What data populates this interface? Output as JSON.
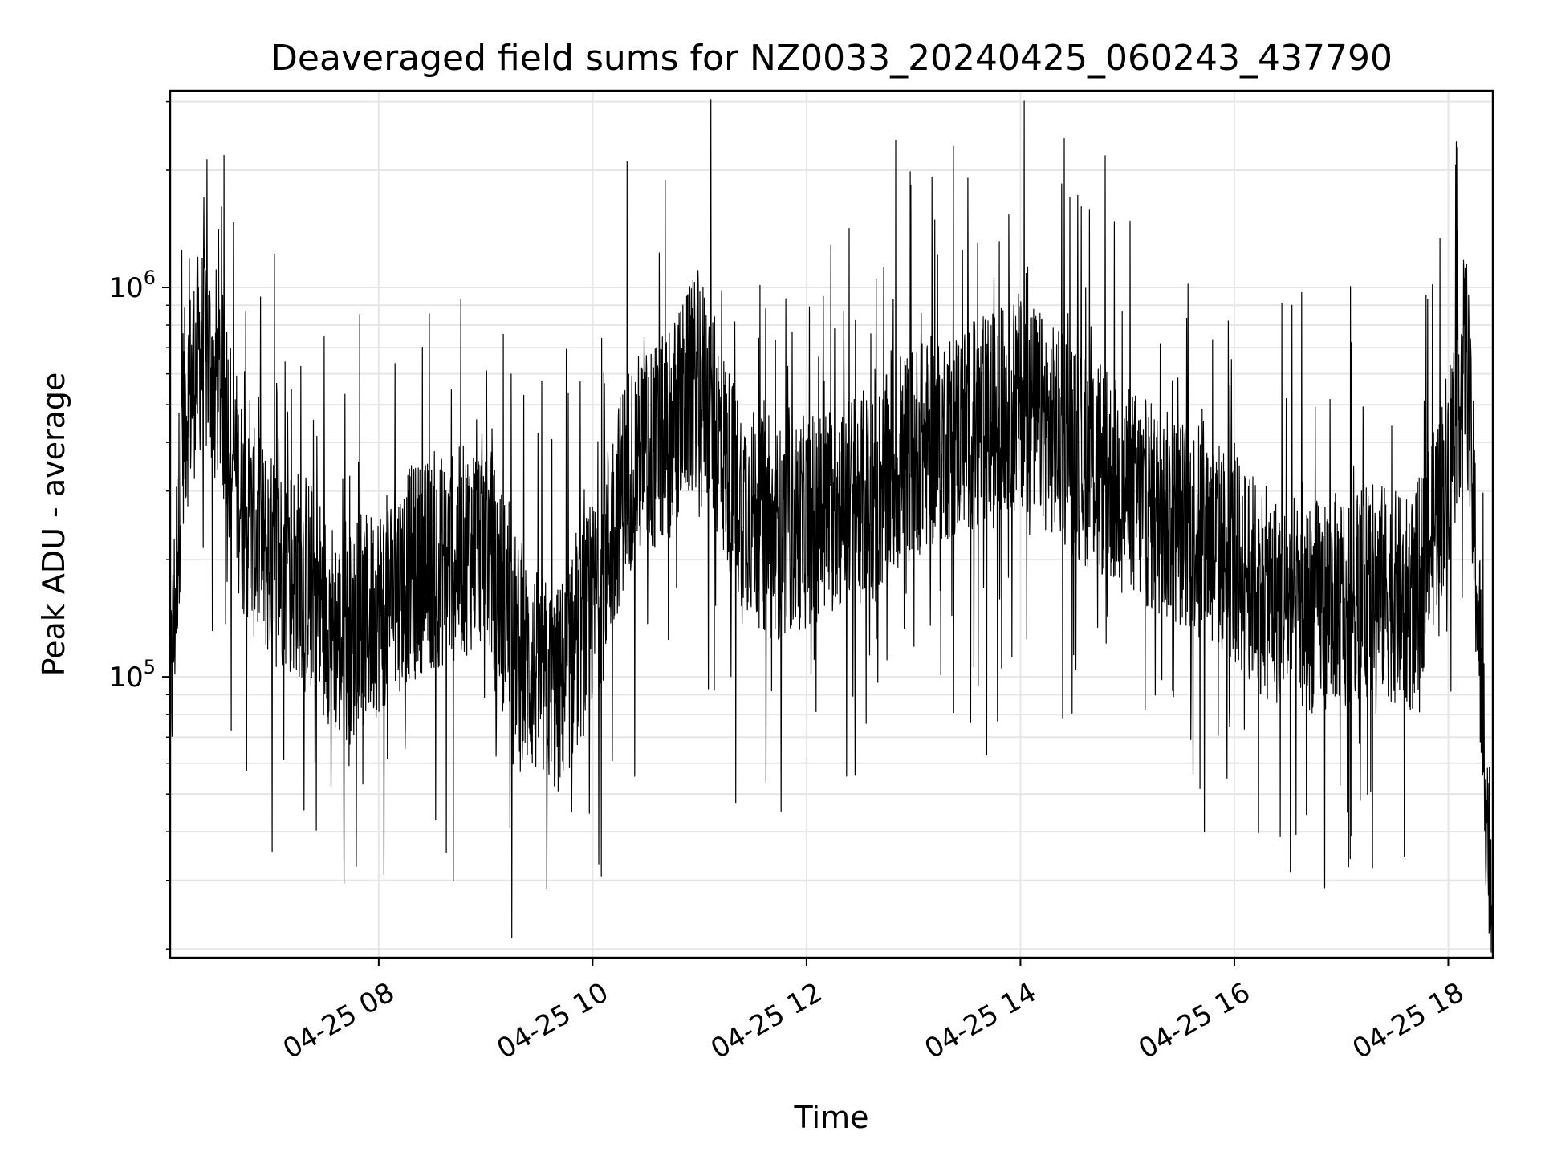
{
  "chart_data": {
    "type": "line",
    "title": "Deaveraged field sums for NZ0033_20240425_060243_437790",
    "xlabel": "Time",
    "ylabel": "Peak ADU - average",
    "xscale": "time",
    "yscale": "log",
    "xlim": [
      "2024-04-25T06:03",
      "2024-04-25T18:25"
    ],
    "ylim": [
      19000,
      3200000
    ],
    "grid": true,
    "line_color": "#000000",
    "grid_color": "#e6e6e6",
    "x_ticks": [
      {
        "label": "04-25 08",
        "t": "2024-04-25T08:00"
      },
      {
        "label": "04-25 10",
        "t": "2024-04-25T10:00"
      },
      {
        "label": "04-25 12",
        "t": "2024-04-25T12:00"
      },
      {
        "label": "04-25 14",
        "t": "2024-04-25T14:00"
      },
      {
        "label": "04-25 16",
        "t": "2024-04-25T16:00"
      },
      {
        "label": "04-25 18",
        "t": "2024-04-25T18:00"
      }
    ],
    "y_ticks": [
      {
        "base": "10",
        "exp": "5",
        "value": 100000
      },
      {
        "base": "10",
        "exp": "6",
        "value": 1000000
      }
    ],
    "series": [
      {
        "x": [
          "2024-04-25T06:03",
          "2024-04-25T06:10",
          "2024-04-25T06:20",
          "2024-04-25T06:30",
          "2024-04-25T06:45",
          "2024-04-25T07:00",
          "2024-04-25T07:20",
          "2024-04-25T07:40",
          "2024-04-25T08:00",
          "2024-04-25T08:20",
          "2024-04-25T08:40",
          "2024-04-25T09:00",
          "2024-04-25T09:20",
          "2024-04-25T09:40",
          "2024-04-25T10:00",
          "2024-04-25T10:20",
          "2024-04-25T10:40",
          "2024-04-25T11:00",
          "2024-04-25T11:20",
          "2024-04-25T11:40",
          "2024-04-25T12:00",
          "2024-04-25T12:20",
          "2024-04-25T12:40",
          "2024-04-25T13:00",
          "2024-04-25T13:20",
          "2024-04-25T13:40",
          "2024-04-25T14:00",
          "2024-04-25T14:20",
          "2024-04-25T14:40",
          "2024-04-25T15:00",
          "2024-04-25T15:20",
          "2024-04-25T15:40",
          "2024-04-25T16:00",
          "2024-04-25T16:20",
          "2024-04-25T16:40",
          "2024-04-25T17:00",
          "2024-04-25T17:20",
          "2024-04-25T17:40",
          "2024-04-25T18:00",
          "2024-04-25T18:10",
          "2024-04-25T18:18",
          "2024-04-25T18:25"
        ],
        "y": [
          80000,
          450000,
          700000,
          600000,
          250000,
          200000,
          180000,
          120000,
          150000,
          190000,
          200000,
          230000,
          110000,
          90000,
          150000,
          350000,
          400000,
          600000,
          300000,
          230000,
          250000,
          280000,
          300000,
          380000,
          420000,
          450000,
          520000,
          420000,
          350000,
          300000,
          260000,
          240000,
          200000,
          160000,
          150000,
          160000,
          170000,
          150000,
          350000,
          700000,
          110000,
          22000
        ]
      }
    ]
  }
}
